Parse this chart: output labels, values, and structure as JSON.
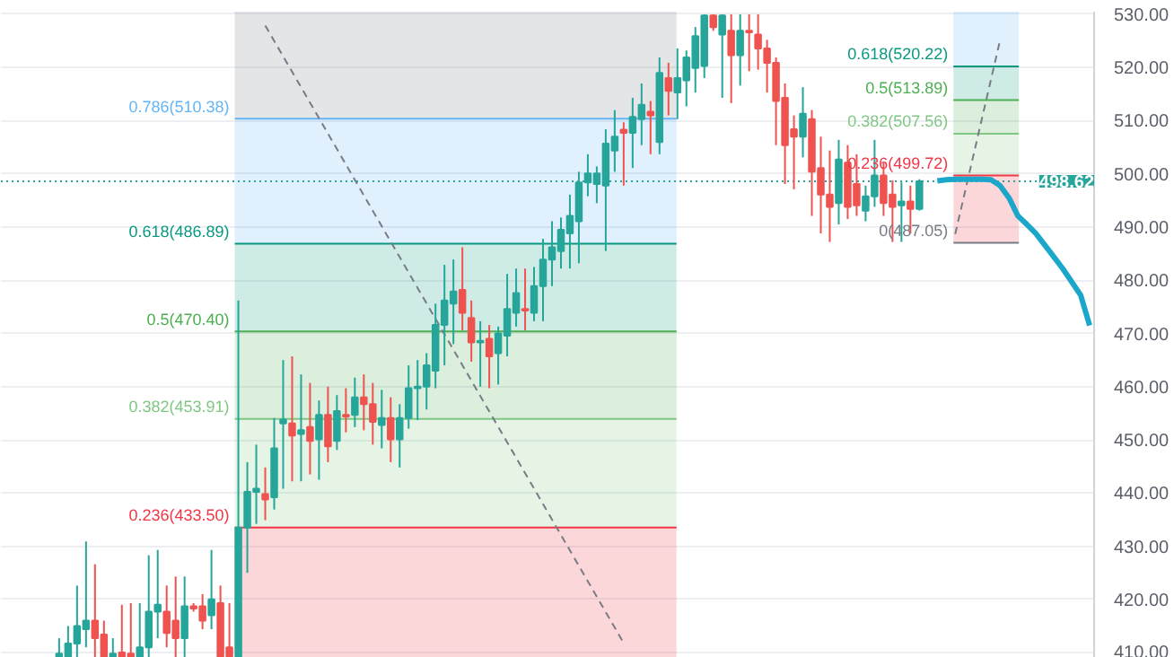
{
  "chart_data": {
    "type": "candlestick",
    "categories": [
      null,
      null,
      null,
      null,
      null,
      null,
      null,
      null,
      null,
      null,
      null,
      null,
      null,
      null,
      null,
      null,
      null,
      null,
      null,
      null,
      null,
      null,
      null,
      null,
      null,
      null,
      null,
      null,
      null,
      null,
      null,
      null,
      null,
      null,
      null,
      null,
      null,
      null,
      null,
      null,
      null,
      null,
      null,
      null,
      null,
      null,
      null,
      null,
      null,
      null,
      null,
      null,
      null,
      null,
      null,
      null,
      null,
      null,
      null,
      null,
      null,
      null,
      null,
      null,
      null,
      null,
      null,
      null,
      null,
      null,
      null,
      null,
      null,
      null,
      null,
      null,
      null,
      null,
      null,
      null,
      null,
      null,
      null,
      null,
      null,
      null,
      null,
      null,
      null,
      null,
      null,
      null,
      null,
      null,
      null,
      null,
      null,
      null,
      null,
      null,
      null,
      null,
      null,
      null,
      null,
      null,
      null,
      null,
      null,
      null,
      null,
      null,
      null,
      null,
      null,
      null,
      null,
      null,
      null,
      null,
      null,
      null
    ],
    "ylim": [
      409,
      530.5
    ],
    "yticks": [
      {
        "value": 410,
        "label": "410.00"
      },
      {
        "value": 420,
        "label": "420.00"
      },
      {
        "value": 430,
        "label": "430.00"
      },
      {
        "value": 440,
        "label": "440.00"
      },
      {
        "value": 450,
        "label": "450.00"
      },
      {
        "value": 460,
        "label": "460.00"
      },
      {
        "value": 470,
        "label": "470.00"
      },
      {
        "value": 480,
        "label": "480.00"
      },
      {
        "value": 490,
        "label": "490.00"
      },
      {
        "value": 500,
        "label": "500.00"
      },
      {
        "value": 510,
        "label": "510.00"
      },
      {
        "value": 520,
        "label": "520.00"
      },
      {
        "value": 530,
        "label": "530.00"
      }
    ],
    "tick_labels": "y",
    "grid": "y",
    "bands": [
      {
        "axis": "y",
        "from": 510.38,
        "to": 530.5,
        "color": "#787b86"
      },
      {
        "axis": "y",
        "from": 486.89,
        "to": 510.38,
        "color": "#64b5f6"
      },
      {
        "axis": "y",
        "from": 470.4,
        "to": 486.89,
        "color": "#089981"
      },
      {
        "axis": "y",
        "from": 453.91,
        "to": 470.4,
        "color": "#4caf50"
      },
      {
        "axis": "y",
        "from": 433.5,
        "to": 453.91,
        "color": "#81c784"
      },
      {
        "axis": "y",
        "from": 409,
        "to": 433.5,
        "color": "#f23645"
      },
      {
        "axis": "y",
        "from": 520.22,
        "to": 530.5,
        "color": "#64b5f6"
      },
      {
        "axis": "y",
        "from": 513.89,
        "to": 520.22,
        "color": "#089981"
      },
      {
        "axis": "y",
        "from": 507.56,
        "to": 513.89,
        "color": "#4caf50"
      },
      {
        "axis": "y",
        "from": 499.72,
        "to": 507.56,
        "color": "#81c784"
      },
      {
        "axis": "y",
        "from": 487.05,
        "to": 499.72,
        "color": "#f23645"
      }
    ],
    "ref_lines": [
      {
        "axis": "y",
        "value": 510.38,
        "label": "0.786(510.38)",
        "color": "#64b5f6"
      },
      {
        "axis": "y",
        "value": 486.89,
        "label": "0.618(486.89)",
        "color": "#089981"
      },
      {
        "axis": "y",
        "value": 470.4,
        "label": "0.5(470.40)",
        "color": "#4caf50"
      },
      {
        "axis": "y",
        "value": 453.91,
        "label": "0.382(453.91)",
        "color": "#81c784"
      },
      {
        "axis": "y",
        "value": 433.5,
        "label": "0.236(433.50)",
        "color": "#f23645"
      },
      {
        "axis": "y",
        "value": 520.22,
        "label": "0.618(520.22)",
        "color": "#089981"
      },
      {
        "axis": "y",
        "value": 513.89,
        "label": "0.5(513.89)",
        "color": "#4caf50"
      },
      {
        "axis": "y",
        "value": 507.56,
        "label": "0.382(507.56)",
        "color": "#81c784"
      },
      {
        "axis": "y",
        "value": 499.72,
        "label": "0.236(499.72)",
        "color": "#f23645"
      },
      {
        "axis": "y",
        "value": 487.05,
        "label": "0(487.05)",
        "color": "#787b86"
      },
      {
        "axis": "y",
        "value": 498.62,
        "label": "498.62",
        "color": "#26a69a",
        "line_style": "dotted"
      }
    ],
    "series": [
      {
        "type": "line",
        "color": "#787b86",
        "line_style": "dashed",
        "values": [
          null,
          null,
          null,
          null,
          null,
          null,
          null,
          null,
          null,
          null,
          null,
          null,
          null,
          null,
          null,
          null,
          null,
          null,
          null,
          null,
          null,
          null,
          null,
          null,
          null,
          null,
          null,
          null,
          null,
          527.9,
          null,
          null,
          null,
          null,
          null,
          null,
          null,
          null,
          null,
          null,
          null,
          null,
          null,
          null,
          null,
          null,
          null,
          null,
          null,
          null,
          null,
          null,
          null,
          null,
          null,
          null,
          null,
          null,
          null,
          null,
          null,
          null,
          null,
          null,
          null,
          null,
          null,
          null,
          null,
          411.8,
          null,
          null,
          null,
          null,
          null,
          null,
          null,
          null,
          null,
          null,
          null,
          null,
          null,
          null,
          null,
          null,
          null,
          null,
          null,
          null,
          null,
          null,
          null,
          null,
          null,
          null,
          null,
          null,
          null,
          null,
          null,
          null,
          null,
          null,
          null,
          null,
          null,
          null,
          null,
          null,
          null,
          null,
          null,
          null,
          null,
          null,
          null,
          null,
          null,
          null,
          null,
          null
        ]
      },
      {
        "type": "line",
        "color": "#787b86",
        "line_style": "dashed",
        "values": [
          null,
          null,
          null,
          null,
          null,
          null,
          null,
          null,
          null,
          null,
          null,
          null,
          null,
          null,
          null,
          null,
          null,
          null,
          null,
          null,
          null,
          null,
          null,
          null,
          null,
          null,
          null,
          null,
          null,
          null,
          null,
          null,
          null,
          null,
          null,
          null,
          null,
          null,
          null,
          null,
          null,
          null,
          null,
          null,
          null,
          null,
          null,
          null,
          null,
          null,
          null,
          null,
          null,
          null,
          null,
          null,
          null,
          null,
          null,
          null,
          null,
          null,
          null,
          null,
          null,
          null,
          null,
          null,
          null,
          null,
          null,
          null,
          null,
          null,
          null,
          null,
          null,
          null,
          null,
          null,
          null,
          null,
          null,
          null,
          null,
          null,
          null,
          null,
          null,
          null,
          null,
          null,
          null,
          null,
          null,
          null,
          null,
          null,
          null,
          null,
          null,
          null,
          null,
          null,
          null,
          null,
          488.7,
          null,
          null,
          null,
          null,
          525.1,
          null,
          null,
          null,
          null,
          null,
          null,
          null,
          null,
          null,
          null
        ]
      },
      {
        "type": "line",
        "color": "#1aa7c9",
        "values": [
          null,
          null,
          null,
          null,
          null,
          null,
          null,
          null,
          null,
          null,
          null,
          null,
          null,
          null,
          null,
          null,
          null,
          null,
          null,
          null,
          null,
          null,
          null,
          null,
          null,
          null,
          null,
          null,
          null,
          null,
          null,
          null,
          null,
          null,
          null,
          null,
          null,
          null,
          null,
          null,
          null,
          null,
          null,
          null,
          null,
          null,
          null,
          null,
          null,
          null,
          null,
          null,
          null,
          null,
          null,
          null,
          null,
          null,
          null,
          null,
          null,
          null,
          null,
          null,
          null,
          null,
          null,
          null,
          null,
          null,
          null,
          null,
          null,
          null,
          null,
          null,
          null,
          null,
          null,
          null,
          null,
          null,
          null,
          null,
          null,
          null,
          null,
          null,
          null,
          null,
          null,
          null,
          null,
          null,
          null,
          null,
          null,
          null,
          null,
          null,
          null,
          null,
          null,
          null,
          498.7,
          498.9,
          499.0,
          499.0,
          499.0,
          499.0,
          498.9,
          497.8,
          495.5,
          492.1,
          490.5,
          488.8,
          486.6,
          484.4,
          482.2,
          479.7,
          477.2,
          471.5
        ]
      },
      {
        "colors": [
          null,
          null,
          null,
          null,
          null,
          null,
          "#26a69a",
          "#26a69a",
          "#26a69a",
          "#26a69a",
          "#ef5350",
          "#ef5350",
          "#26a69a",
          "#ef5350",
          "#ef5350",
          "#26a69a",
          "#26a69a",
          "#26a69a",
          "#ef5350",
          "#ef5350",
          "#26a69a",
          "#ef5350",
          "#ef5350",
          "#26a69a",
          "#ef5350",
          "#ef5350",
          "#26a69a",
          "#26a69a",
          "#26a69a",
          "#ef5350",
          "#26a69a",
          "#26a69a",
          "#ef5350",
          "#26a69a",
          "#ef5350",
          "#26a69a",
          "#ef5350",
          "#26a69a",
          "#ef5350",
          "#26a69a",
          "#ef5350",
          "#ef5350",
          "#26a69a",
          "#ef5350",
          "#26a69a",
          "#26a69a",
          "#26a69a",
          "#26a69a",
          "#26a69a",
          "#26a69a",
          "#26a69a",
          "#ef5350",
          "#ef5350",
          "#26a69a",
          "#ef5350",
          "#26a69a",
          "#26a69a",
          "#26a69a",
          "#ef5350",
          "#26a69a",
          "#26a69a",
          "#26a69a",
          "#26a69a",
          "#26a69a",
          "#26a69a",
          "#26a69a",
          "#26a69a",
          "#26a69a",
          "#26a69a",
          "#ef5350",
          "#26a69a",
          "#26a69a",
          "#ef5350",
          "#26a69a",
          "#ef5350",
          "#26a69a",
          "#26a69a",
          "#26a69a",
          "#26a69a",
          "#ef5350",
          "#26a69a",
          "#ef5350",
          "#26a69a",
          "#ef5350",
          "#ef5350",
          "#ef5350",
          "#ef5350",
          "#ef5350",
          "#ef5350",
          "#26a69a",
          "#ef5350",
          "#ef5350",
          "#ef5350",
          "#26a69a",
          "#ef5350",
          "#ef5350",
          "#26a69a",
          "#26a69a",
          "#ef5350",
          "#ef5350",
          "#26a69a",
          "#ef5350",
          "#26a69a",
          null,
          null,
          null,
          null,
          null,
          null,
          null,
          null,
          null,
          null,
          null,
          null,
          null,
          null,
          null,
          null,
          null,
          null,
          null
        ],
        "ohlc": [
          null,
          null,
          null,
          null,
          null,
          null,
          [
            409.2,
            412.7,
            409.1,
            409.8
          ],
          [
            409.2,
            415.0,
            409.1,
            411.7
          ],
          [
            411.7,
            422.6,
            409.1,
            415.0
          ],
          [
            414.4,
            430.9,
            411.0,
            416.0
          ],
          [
            416.0,
            426.6,
            409.1,
            412.7
          ],
          [
            413.4,
            416.0,
            409.1,
            409.2
          ],
          [
            409.2,
            412.7,
            409.1,
            409.8
          ],
          [
            410.0,
            419.0,
            409.1,
            409.2
          ],
          [
            409.8,
            419.3,
            409.1,
            409.2
          ],
          [
            409.2,
            419.3,
            409.1,
            411.0
          ],
          [
            411.0,
            428.3,
            409.1,
            417.7
          ],
          [
            417.7,
            429.3,
            412.7,
            419.0
          ],
          [
            417.7,
            422.6,
            411.0,
            413.7
          ],
          [
            416.0,
            424.3,
            409.1,
            412.7
          ],
          [
            412.7,
            424.3,
            409.1,
            418.7
          ],
          [
            418.7,
            419.3,
            417.7,
            418.3
          ],
          [
            418.7,
            421.0,
            414.4,
            416.0
          ],
          [
            417.0,
            429.3,
            414.4,
            420.0
          ],
          [
            419.3,
            422.6,
            409.1,
            409.2
          ],
          [
            411.0,
            419.3,
            409.1,
            409.2
          ],
          [
            409.2,
            476.2,
            409.1,
            433.5
          ],
          [
            433.5,
            445.8,
            425.0,
            440.2
          ],
          [
            440.2,
            449.1,
            434.2,
            440.8
          ],
          [
            439.8,
            444.8,
            434.9,
            438.8
          ],
          [
            439.2,
            454.1,
            436.9,
            448.4
          ],
          [
            453.1,
            465.0,
            440.8,
            453.8
          ],
          [
            453.1,
            465.7,
            442.2,
            450.8
          ],
          [
            451.1,
            462.3,
            442.2,
            451.8
          ],
          [
            452.4,
            460.7,
            443.5,
            449.8
          ],
          [
            450.1,
            457.4,
            442.5,
            454.7
          ],
          [
            454.7,
            460.0,
            445.8,
            448.8
          ],
          [
            449.8,
            458.4,
            448.1,
            455.4
          ],
          [
            454.7,
            459.7,
            451.4,
            454.4
          ],
          [
            454.7,
            461.7,
            452.4,
            458.0
          ],
          [
            458.0,
            462.3,
            451.8,
            456.7
          ],
          [
            456.7,
            460.7,
            449.1,
            453.4
          ],
          [
            452.8,
            459.4,
            448.4,
            454.1
          ],
          [
            454.1,
            458.0,
            445.8,
            450.1
          ],
          [
            450.1,
            456.7,
            444.8,
            454.1
          ],
          [
            454.1,
            464.0,
            452.1,
            459.7
          ],
          [
            459.7,
            465.0,
            453.7,
            460.0
          ],
          [
            460.0,
            466.3,
            455.7,
            464.0
          ],
          [
            463.0,
            475.6,
            459.7,
            471.6
          ],
          [
            471.6,
            482.9,
            464.0,
            476.2
          ],
          [
            475.6,
            483.9,
            468.0,
            477.9
          ],
          [
            478.2,
            486.2,
            470.6,
            473.9
          ],
          [
            472.9,
            476.2,
            464.7,
            468.3
          ],
          [
            468.3,
            472.3,
            460.0,
            468.6
          ],
          [
            469.0,
            471.6,
            459.7,
            465.7
          ],
          [
            466.3,
            471.3,
            460.4,
            470.0
          ],
          [
            469.6,
            481.2,
            465.7,
            474.6
          ],
          [
            473.9,
            482.2,
            471.3,
            477.6
          ],
          [
            474.6,
            482.2,
            470.6,
            474.3
          ],
          [
            473.9,
            482.5,
            472.3,
            478.9
          ],
          [
            478.9,
            487.8,
            472.3,
            483.9
          ],
          [
            483.9,
            491.1,
            478.9,
            486.2
          ],
          [
            485.5,
            491.8,
            482.2,
            489.5
          ],
          [
            488.8,
            496.1,
            482.2,
            492.1
          ],
          [
            491.1,
            500.4,
            483.2,
            498.4
          ],
          [
            498.4,
            503.7,
            495.8,
            500.1
          ],
          [
            498.1,
            501.4,
            494.5,
            500.1
          ],
          [
            497.8,
            508.4,
            485.5,
            505.7
          ],
          [
            504.4,
            512.0,
            500.4,
            507.0
          ],
          [
            508.3,
            509.7,
            497.8,
            507.7
          ],
          [
            507.7,
            514.3,
            501.1,
            510.7
          ],
          [
            510.3,
            517.0,
            505.4,
            513.0
          ],
          [
            511.7,
            513.7,
            503.7,
            511.0
          ],
          [
            506.0,
            521.9,
            503.7,
            519.0
          ],
          [
            518.0,
            520.9,
            511.0,
            515.6
          ],
          [
            515.3,
            523.6,
            510.3,
            518.0
          ],
          [
            517.6,
            523.2,
            512.7,
            521.9
          ],
          [
            519.9,
            527.6,
            515.3,
            525.9
          ],
          [
            520.3,
            530.0,
            518.0,
            529.8
          ],
          [
            529.8,
            530.0,
            526.9,
            527.6
          ],
          [
            526.2,
            530.0,
            514.3,
            529.8
          ],
          [
            526.9,
            530.0,
            513.3,
            522.3
          ],
          [
            522.3,
            530.0,
            516.6,
            526.9
          ],
          [
            526.9,
            530.0,
            519.3,
            526.6
          ],
          [
            526.2,
            530.0,
            519.6,
            523.6
          ],
          [
            523.6,
            525.2,
            515.3,
            520.9
          ],
          [
            520.9,
            521.9,
            505.4,
            513.7
          ],
          [
            514.3,
            517.0,
            498.1,
            505.4
          ],
          [
            508.4,
            511.0,
            497.1,
            507.0
          ],
          [
            507.0,
            516.3,
            503.1,
            511.3
          ],
          [
            510.3,
            512.0,
            492.1,
            500.4
          ],
          [
            501.1,
            507.0,
            488.8,
            496.1
          ],
          [
            496.1,
            504.4,
            487.2,
            493.8
          ],
          [
            494.5,
            506.4,
            490.5,
            502.7
          ],
          [
            502.1,
            505.4,
            491.5,
            493.8
          ],
          [
            498.1,
            503.7,
            492.1,
            494.1
          ],
          [
            493.1,
            497.8,
            491.1,
            495.8
          ],
          [
            495.8,
            506.4,
            493.8,
            499.7
          ],
          [
            499.7,
            502.1,
            492.1,
            494.5
          ],
          [
            496.1,
            498.8,
            487.2,
            493.8
          ],
          [
            494.1,
            498.4,
            487.2,
            494.8
          ],
          [
            494.8,
            497.8,
            488.8,
            493.4
          ],
          [
            493.4,
            499.0,
            493.1,
            498.6
          ],
          null,
          null,
          null,
          null,
          null,
          null,
          null,
          null,
          null,
          null,
          null,
          null,
          null,
          null,
          null,
          null,
          null,
          null,
          null
        ]
      }
    ]
  }
}
